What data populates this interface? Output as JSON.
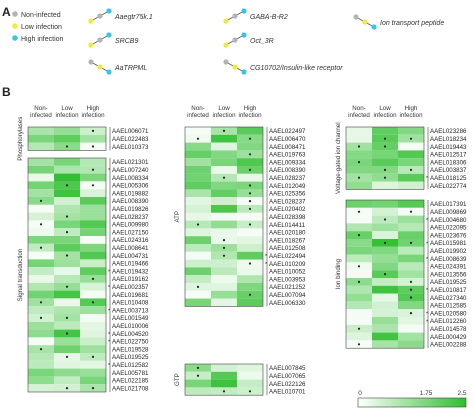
{
  "panel_a": {
    "letter": "A",
    "legend": [
      {
        "label": "Non-infected",
        "color": "#b3b3b3"
      },
      {
        "label": "Low infection",
        "color": "#f2e93a"
      },
      {
        "label": "High infection",
        "color": "#37c4e8"
      }
    ],
    "motifs": [
      {
        "label": "Aaegtr75k.1",
        "shape": "up"
      },
      {
        "label": "GABA-B-R2",
        "shape": "up"
      },
      {
        "label": "Ion transport peptide",
        "shape": "down"
      },
      {
        "label": "SRCB9",
        "shape": "up"
      },
      {
        "label": "Oct_3R",
        "shape": "up"
      },
      {
        "label": "AaTRPML",
        "shape": "down"
      },
      {
        "label": "CG10702/Insulin-like receptor",
        "shape": "down"
      }
    ]
  },
  "panel_b": {
    "letter": "B",
    "column_headers": [
      [
        "Non-",
        "infected"
      ],
      [
        "Low",
        "infection"
      ],
      [
        "High",
        "infection"
      ]
    ],
    "blocks": [
      {
        "category": "Phosphorylases",
        "genes": [
          "AAEL006071",
          "AAEL022483",
          "AAEL010373"
        ]
      },
      {
        "category": "Signal transduction",
        "genes": [
          "AAEL021301",
          "AAEL007240",
          "AAEL008334",
          "AAEL005306",
          "AAEL019882",
          "AAEL008390",
          "AAEL019826",
          "AAEL028237",
          "AAEL009980",
          "AAEL027150",
          "AAEL024316",
          "AAEL008641",
          "AAEL004731",
          "AAEL019466",
          "AAEL019432",
          "AAEL019162",
          "AAEL002357",
          "AAEL019681",
          "AAEL010408",
          "AAEL003713",
          "AAEL001549",
          "AAEL010006",
          "AAEL004520",
          "AAEL022750",
          "AAEL019528",
          "AAEL019525",
          "AAEL012582",
          "AAEL005781",
          "AAEL022185",
          "AAEL021708"
        ]
      },
      {
        "category": "ATP",
        "genes": [
          "AAEL022497",
          "AAEL006470",
          "AAEL008471",
          "AAEL019763",
          "AAEL009334",
          "AAEL008390",
          "AAEL028237",
          "AAEL012049",
          "AAEL025356",
          "AAEL028237",
          "AAEL020402",
          "AAEL028398",
          "AAEL014411",
          "AAEL020180",
          "AAEL018267",
          "AAEL012508",
          "AAEL022494",
          "AAEL010209",
          "AAEL010052",
          "AAEL003953",
          "AAEL021252",
          "AAEL007094",
          "AAEL006330"
        ]
      },
      {
        "category": "GTP",
        "genes": [
          "AAEL007845",
          "AAEL007065",
          "AAEL022126",
          "AAEL010701"
        ]
      },
      {
        "category": "Voltage-gated ion channel",
        "genes": [
          "AAEL023286",
          "AAEL018234",
          "AAEL019443",
          "AAEL012517",
          "AAEL018306",
          "AAEL003837",
          "AAEL018125",
          "AAEL022774"
        ]
      },
      {
        "category": "Ion binding",
        "genes": [
          "AAEL017391",
          "AAEL009869",
          "AAEL004680",
          "AAEL022095",
          "AAEL023676",
          "AAEL015981",
          "AAEL019902",
          "AAEL008639",
          "AAEL024391",
          "AAEL013556",
          "AAEL019525",
          "AAEL010817",
          "AAEL027340",
          "AAEL012585",
          "AAEL020580",
          "AAEL012260",
          "AAEL014578",
          "AAEL000429",
          "AAEL002288"
        ]
      }
    ],
    "colorbar": {
      "ticks": [
        "0",
        "1.75",
        "2.5"
      ],
      "low_color": "#ffffff",
      "high_color": "#2fbe2f"
    }
  }
}
